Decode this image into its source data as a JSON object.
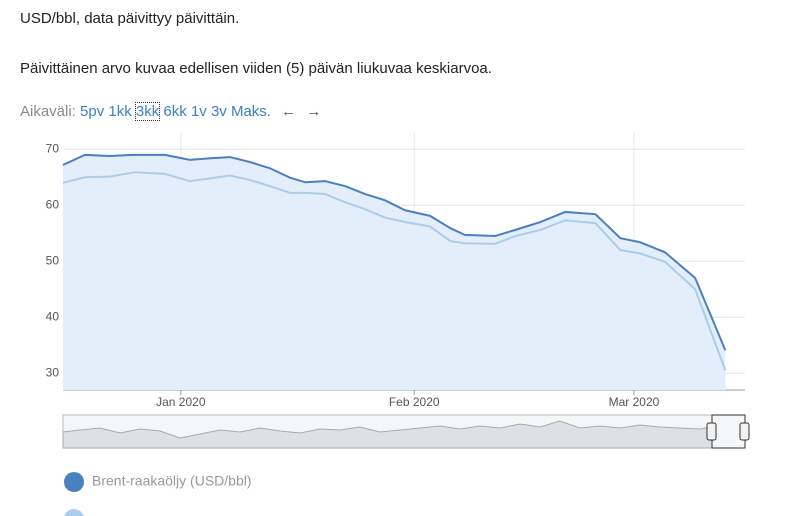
{
  "header": {
    "unit_note": "USD/bbl, data päivittyy päivittäin.",
    "description": "Päivittäinen arvo kuvaa edellisen viiden (5) päivän liukuvaa keskiarvoa."
  },
  "range_selector": {
    "label": "Aikaväli:",
    "options": [
      "5pv",
      "1kk",
      "3kk",
      "6kk",
      "1v",
      "3v",
      "Maks."
    ],
    "selected": "3kk"
  },
  "chart_data": {
    "type": "line",
    "grid": true,
    "x": [
      0,
      2.9,
      6.2,
      9.5,
      13.5,
      16.8,
      19.5,
      22.1,
      24.8,
      27.4,
      30.1,
      32.1,
      34.7,
      37.4,
      40.0,
      42.6,
      45.3,
      48.6,
      51.3,
      53.2,
      57.2,
      59.9,
      63.2,
      66.5,
      70.5,
      73.8,
      76.4,
      79.7,
      83.7,
      87.7
    ],
    "xlim": [
      0,
      90.3
    ],
    "xticks": [
      {
        "value": 15.6,
        "label": "Jan 2020"
      },
      {
        "value": 46.5,
        "label": "Feb 2020"
      },
      {
        "value": 75.6,
        "label": "Mar 2020"
      }
    ],
    "ylim": [
      27,
      72.9
    ],
    "yticks": [
      30,
      40,
      50,
      60,
      70
    ],
    "series": [
      {
        "name": "Brent-raakaöljy (USD/bbl)",
        "color": "#4a7fc1",
        "values": [
          67.2,
          69.0,
          68.8,
          69.0,
          69.0,
          68.1,
          68.4,
          68.6,
          67.7,
          66.6,
          64.9,
          64.1,
          64.3,
          63.4,
          62.0,
          60.9,
          59.1,
          58.1,
          55.9,
          54.7,
          54.5,
          55.6,
          57.0,
          58.8,
          58.4,
          54.1,
          53.4,
          51.6,
          47.0,
          34.1
        ]
      },
      {
        "color": "#a9cdea",
        "values": [
          64.0,
          65.0,
          65.1,
          65.9,
          65.6,
          64.3,
          64.8,
          65.3,
          64.5,
          63.4,
          62.2,
          62.2,
          62.0,
          60.5,
          59.3,
          57.8,
          57.0,
          56.2,
          53.6,
          53.2,
          53.1,
          54.5,
          55.6,
          57.3,
          56.8,
          52.0,
          51.4,
          49.9,
          45.0,
          30.5
        ]
      }
    ]
  }
}
